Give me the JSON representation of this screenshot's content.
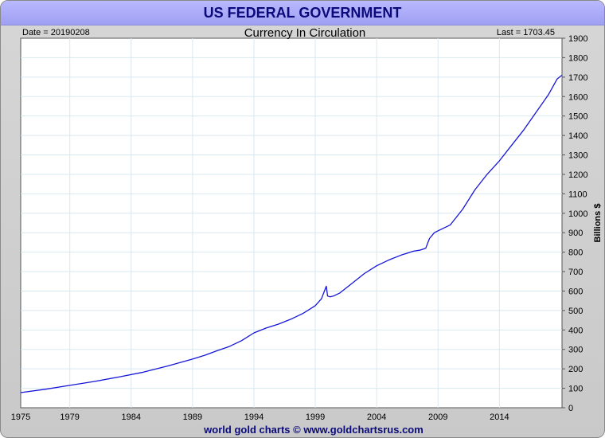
{
  "header": {
    "title": "US FEDERAL GOVERNMENT",
    "date_label": "Date = 20190208",
    "last_label": "Last = 1703.45"
  },
  "footer": {
    "credit": "world gold charts © www.goldchartsrus.com"
  },
  "colors": {
    "line": "#1515d8",
    "grid": "#d8e8f0",
    "title_bar": "#aaaaf8",
    "title_text": "#0a0a7a"
  },
  "chart_data": {
    "type": "line",
    "title": "Currency In Circulation",
    "xlabel": "",
    "ylabel": "Billions $",
    "xlim": [
      1975.0,
      2019.1
    ],
    "ylim": [
      0,
      1900
    ],
    "grid": true,
    "x_tick_labels": [
      "1975",
      "1979",
      "1984",
      "1989",
      "1994",
      "1999",
      "2004",
      "2009",
      "2014"
    ],
    "y_tick_labels": [
      "0",
      "100",
      "200",
      "300",
      "400",
      "500",
      "600",
      "700",
      "800",
      "900",
      "1000",
      "1100",
      "1200",
      "1300",
      "1400",
      "1500",
      "1600",
      "1700",
      "1800",
      "1900"
    ],
    "series": [
      {
        "name": "",
        "x": [
          1975.0,
          1977.0,
          1979.0,
          1981.0,
          1983.0,
          1985.0,
          1987.0,
          1989.0,
          1990.0,
          1991.0,
          1992.0,
          1993.0,
          1994.0,
          1995.0,
          1996.0,
          1997.0,
          1998.0,
          1999.0,
          1999.5,
          1999.9,
          2000.0,
          2000.2,
          2000.5,
          2001.0,
          2002.0,
          2003.0,
          2004.0,
          2005.0,
          2006.0,
          2007.0,
          2007.5,
          2008.0,
          2008.3,
          2008.7,
          2009.0,
          2010.0,
          2011.0,
          2012.0,
          2013.0,
          2014.0,
          2015.0,
          2016.0,
          2017.0,
          2018.0,
          2018.7,
          2019.1
        ],
        "values": [
          78,
          95,
          115,
          135,
          158,
          183,
          215,
          250,
          270,
          293,
          315,
          345,
          385,
          410,
          430,
          455,
          485,
          525,
          560,
          625,
          575,
          570,
          575,
          590,
          640,
          690,
          730,
          760,
          785,
          805,
          810,
          820,
          870,
          900,
          910,
          940,
          1020,
          1120,
          1200,
          1270,
          1350,
          1430,
          1520,
          1610,
          1690,
          1710
        ]
      }
    ]
  }
}
